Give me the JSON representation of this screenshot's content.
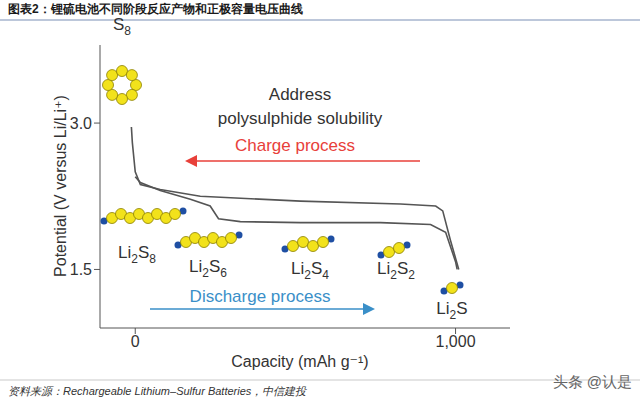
{
  "chart_data": {
    "type": "line",
    "title": "图表2：锂硫电池不同阶段反应产物和正极容量电压曲线",
    "source": "资料来源：Rechargeable Lithium–Sulfur Batteries，中信建投",
    "watermark": "头条 @认是",
    "xlabel": "Capacity (mAh g⁻¹)",
    "ylabel": "Potential (V versus Li/Li⁺)",
    "xlim": [
      -110,
      1170
    ],
    "ylim": [
      0.9,
      3.8
    ],
    "xticks": [
      0,
      {
        "value": 1000,
        "label": "1,000"
      }
    ],
    "yticks": [
      1.5,
      {
        "value": 3,
        "label": "3.0"
      }
    ],
    "annotation_lines": [
      "Address",
      "polysulphide solubility"
    ],
    "species": [
      "S8",
      "Li2S8",
      "Li2S6",
      "Li2S4",
      "Li2S2",
      "Li2S"
    ],
    "series": [
      {
        "name": "Discharge process",
        "color": "#555555",
        "x": [
          0,
          16,
          78,
          172,
          234,
          260,
          328,
          516,
          766,
          922,
          969,
          1000,
          1005
        ],
        "values": [
          2.45,
          2.39,
          2.31,
          2.22,
          2.15,
          2.02,
          1.99,
          1.98,
          1.98,
          1.96,
          1.88,
          1.58,
          1.5
        ]
      },
      {
        "name": "Charge process",
        "color": "#555555",
        "x": [
          1010,
          984,
          960,
          938,
          828,
          516,
          203,
          78,
          16,
          0,
          -9,
          -12
        ],
        "values": [
          1.5,
          1.8,
          2.1,
          2.15,
          2.17,
          2.2,
          2.25,
          2.32,
          2.37,
          2.5,
          2.8,
          2.96
        ]
      }
    ]
  }
}
